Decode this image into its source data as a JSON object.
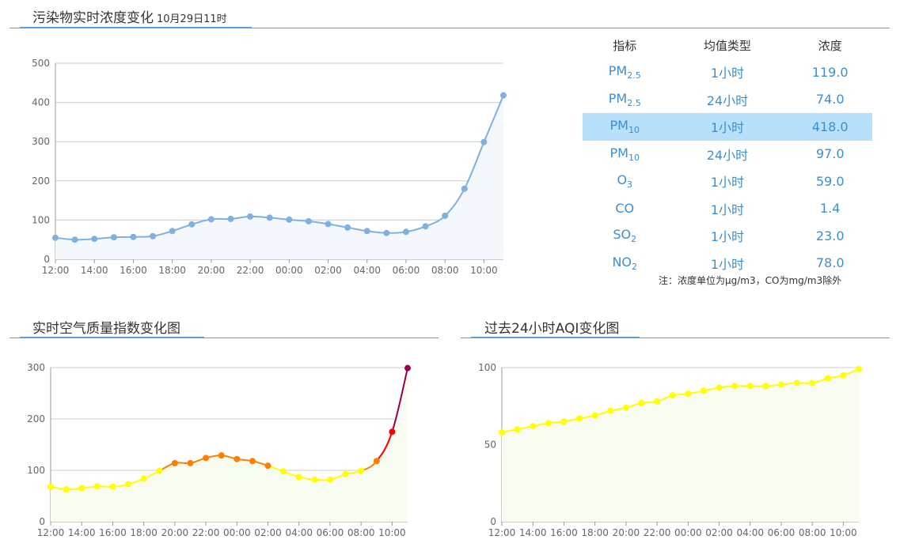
{
  "top": {
    "title": "污染物实时浓度变化",
    "subtitle": "10月29日11时"
  },
  "table": {
    "headers": [
      "指标",
      "均值类型",
      "浓度"
    ],
    "rows": [
      {
        "name": "PM",
        "sub": "2.5",
        "type": "1小时",
        "value": "119.0",
        "highlight": false
      },
      {
        "name": "PM",
        "sub": "2.5",
        "type": "24小时",
        "value": "74.0",
        "highlight": false
      },
      {
        "name": "PM",
        "sub": "10",
        "type": "1小时",
        "value": "418.0",
        "highlight": true
      },
      {
        "name": "PM",
        "sub": "10",
        "type": "24小时",
        "value": "97.0",
        "highlight": false
      },
      {
        "name": "O",
        "sub": "3",
        "type": "1小时",
        "value": "59.0",
        "highlight": false
      },
      {
        "name": "CO",
        "sub": "",
        "type": "1小时",
        "value": "1.4",
        "highlight": false
      },
      {
        "name": "SO",
        "sub": "2",
        "type": "1小时",
        "value": "23.0",
        "highlight": false
      },
      {
        "name": "NO",
        "sub": "2",
        "type": "1小时",
        "value": "78.0",
        "highlight": false
      }
    ],
    "note": "注：浓度单位为μg/m3，CO为mg/m3除外"
  },
  "bottom_left": {
    "title": "实时空气质量指数变化图"
  },
  "bottom_right": {
    "title": "过去24小时AQI变化图"
  },
  "colors": {
    "accent": "#5aa0d6",
    "series_top": "#7fb0e0",
    "aqi_good": "#ffff00",
    "aqi_light": "#ff7e00",
    "aqi_moderate": "#ff0000",
    "aqi_heavy": "#99004c",
    "grid": "#cccccc"
  },
  "chart_data": [
    {
      "type": "line",
      "x": [
        "12:00",
        "13:00",
        "14:00",
        "15:00",
        "16:00",
        "17:00",
        "18:00",
        "19:00",
        "20:00",
        "21:00",
        "22:00",
        "23:00",
        "00:00",
        "01:00",
        "02:00",
        "03:00",
        "04:00",
        "05:00",
        "06:00",
        "07:00",
        "08:00",
        "09:00",
        "10:00",
        "11:00"
      ],
      "tick_labels": [
        "12:00",
        "14:00",
        "16:00",
        "18:00",
        "20:00",
        "22:00",
        "00:00",
        "02:00",
        "04:00",
        "06:00",
        "08:00",
        "10:00"
      ],
      "values": [
        55,
        50,
        52,
        56,
        57,
        59,
        72,
        89,
        102,
        103,
        109,
        106,
        101,
        97,
        90,
        81,
        72,
        67,
        70,
        84,
        111,
        180,
        299,
        418
      ],
      "ylim": [
        0,
        500
      ],
      "yticks": [
        0,
        100,
        200,
        300,
        400,
        500
      ],
      "grid": true,
      "fill": "area"
    },
    {
      "type": "line",
      "x": [
        "12:00",
        "13:00",
        "14:00",
        "15:00",
        "16:00",
        "17:00",
        "18:00",
        "19:00",
        "20:00",
        "21:00",
        "22:00",
        "23:00",
        "00:00",
        "01:00",
        "02:00",
        "03:00",
        "04:00",
        "05:00",
        "06:00",
        "07:00",
        "08:00",
        "09:00",
        "10:00",
        "11:00"
      ],
      "tick_labels": [
        "12:00",
        "14:00",
        "16:00",
        "18:00",
        "20:00",
        "22:00",
        "00:00",
        "02:00",
        "04:00",
        "06:00",
        "08:00",
        "10:00"
      ],
      "values": [
        68,
        63,
        65,
        69,
        68,
        73,
        84,
        99,
        114,
        114,
        124,
        129,
        122,
        118,
        109,
        98,
        87,
        82,
        82,
        93,
        99,
        118,
        175,
        299
      ],
      "ylim": [
        0,
        300
      ],
      "yticks": [
        0,
        100,
        200,
        300
      ],
      "grid": true,
      "color_by_aqi_level": true
    },
    {
      "type": "line",
      "x": [
        "12:00",
        "13:00",
        "14:00",
        "15:00",
        "16:00",
        "17:00",
        "18:00",
        "19:00",
        "20:00",
        "21:00",
        "22:00",
        "23:00",
        "00:00",
        "01:00",
        "02:00",
        "03:00",
        "04:00",
        "05:00",
        "06:00",
        "07:00",
        "08:00",
        "09:00",
        "10:00",
        "11:00"
      ],
      "tick_labels": [
        "12:00",
        "14:00",
        "16:00",
        "18:00",
        "20:00",
        "22:00",
        "00:00",
        "02:00",
        "04:00",
        "06:00",
        "08:00",
        "10:00"
      ],
      "values": [
        58,
        60,
        62,
        64,
        65,
        67,
        69,
        72,
        74,
        77,
        78,
        82,
        83,
        85,
        87,
        88,
        88,
        88,
        89,
        90,
        90,
        93,
        95,
        99
      ],
      "ylim": [
        0,
        100
      ],
      "yticks": [
        0,
        50,
        100
      ],
      "grid": true,
      "fill": "area"
    }
  ]
}
